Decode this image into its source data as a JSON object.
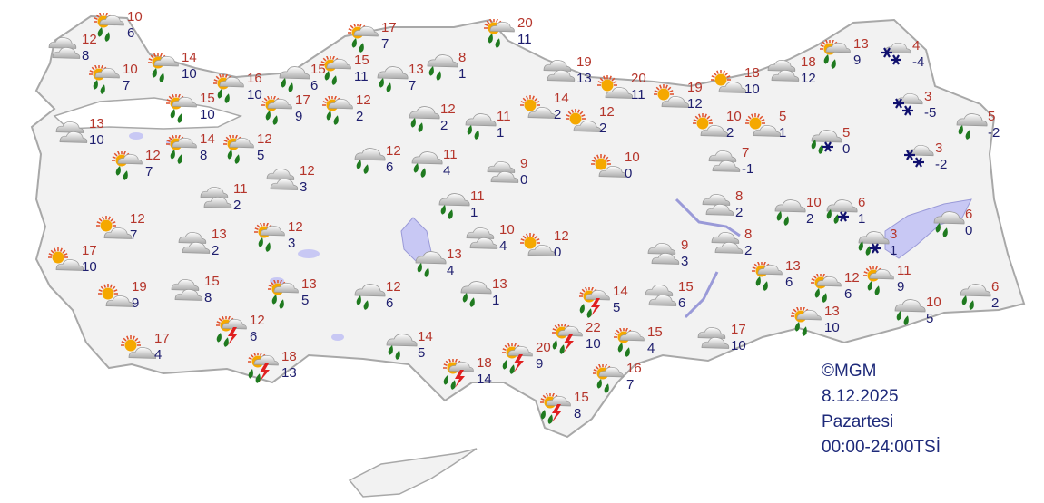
{
  "credit": "©MGM",
  "date": "8.12.2025",
  "day": "Pazartesi",
  "period": "00:00-24:00TSİ",
  "colors": {
    "land": "#f2f2f2",
    "border": "#a8a8a8",
    "lake": "#c8c8f4",
    "high": "#b5352b",
    "low": "#1e1e6e",
    "rain": "#1f7a1f",
    "snow": "#10106e",
    "bolt": "#e02020",
    "sun": "#f5a800"
  },
  "stations": [
    {
      "icon": "sun-rain",
      "hi": "10",
      "lo": "6"
    },
    {
      "icon": "cloudy",
      "hi": "12",
      "lo": "8"
    },
    {
      "icon": "sun-rain",
      "hi": "10",
      "lo": "7"
    },
    {
      "icon": "sun-rain",
      "hi": "14",
      "lo": "10"
    },
    {
      "icon": "sun-rain",
      "hi": "16",
      "lo": "10"
    },
    {
      "icon": "sun-rain",
      "hi": "15",
      "lo": "10"
    },
    {
      "icon": "rain",
      "hi": "15",
      "lo": "6"
    },
    {
      "icon": "sun-rain",
      "hi": "15",
      "lo": "11"
    },
    {
      "icon": "sun-rain",
      "hi": "17",
      "lo": "7"
    },
    {
      "icon": "sun-rain",
      "hi": "17",
      "lo": "9"
    },
    {
      "icon": "sun-rain",
      "hi": "12",
      "lo": "2"
    },
    {
      "icon": "rain",
      "hi": "13",
      "lo": "7"
    },
    {
      "icon": "rain",
      "hi": "8",
      "lo": "1"
    },
    {
      "icon": "sun-rain",
      "hi": "20",
      "lo": "11"
    },
    {
      "icon": "cloudy",
      "hi": "13",
      "lo": "10"
    },
    {
      "icon": "sun-rain",
      "hi": "14",
      "lo": "8"
    },
    {
      "icon": "sun-rain",
      "hi": "12",
      "lo": "5"
    },
    {
      "icon": "sun-rain",
      "hi": "12",
      "lo": "7"
    },
    {
      "icon": "cloudy",
      "hi": "11",
      "lo": "2"
    },
    {
      "icon": "cloudy",
      "hi": "12",
      "lo": "3"
    },
    {
      "icon": "rain",
      "hi": "12",
      "lo": "6"
    },
    {
      "icon": "rain",
      "hi": "12",
      "lo": "2"
    },
    {
      "icon": "rain",
      "hi": "11",
      "lo": "1"
    },
    {
      "icon": "sun-cloud",
      "hi": "14",
      "lo": "2"
    },
    {
      "icon": "sun-cloud",
      "hi": "12",
      "lo": "2"
    },
    {
      "icon": "cloudy",
      "hi": "19",
      "lo": "13"
    },
    {
      "icon": "sun-cloud",
      "hi": "20",
      "lo": "11"
    },
    {
      "icon": "sun-cloud",
      "hi": "19",
      "lo": "12"
    },
    {
      "icon": "sun-cloud",
      "hi": "18",
      "lo": "10"
    },
    {
      "icon": "cloudy",
      "hi": "18",
      "lo": "12"
    },
    {
      "icon": "sun-rain",
      "hi": "13",
      "lo": "9"
    },
    {
      "icon": "snow",
      "hi": "4",
      "lo": "-4"
    },
    {
      "icon": "snow",
      "hi": "3",
      "lo": "-5"
    },
    {
      "icon": "rain",
      "hi": "5",
      "lo": "-2"
    },
    {
      "icon": "sun-cloud",
      "hi": "10",
      "lo": "2"
    },
    {
      "icon": "sun-cloud",
      "hi": "5",
      "lo": "1"
    },
    {
      "icon": "sleet",
      "hi": "5",
      "lo": "0"
    },
    {
      "icon": "snow",
      "hi": "3",
      "lo": "-2"
    },
    {
      "icon": "cloudy",
      "hi": "7",
      "lo": "-1"
    },
    {
      "icon": "rain",
      "hi": "11",
      "lo": "4"
    },
    {
      "icon": "cloudy",
      "hi": "9",
      "lo": "0"
    },
    {
      "icon": "sun-cloud",
      "hi": "10",
      "lo": "0"
    },
    {
      "icon": "rain",
      "hi": "11",
      "lo": "1"
    },
    {
      "icon": "cloudy",
      "hi": "8",
      "lo": "2"
    },
    {
      "icon": "rain",
      "hi": "10",
      "lo": "2"
    },
    {
      "icon": "sleet",
      "hi": "6",
      "lo": "1"
    },
    {
      "icon": "rain",
      "hi": "6",
      "lo": "0"
    },
    {
      "icon": "sleet",
      "hi": "3",
      "lo": "1"
    },
    {
      "icon": "cloudy",
      "hi": "8",
      "lo": "2"
    },
    {
      "icon": "cloudy",
      "hi": "9",
      "lo": "3"
    },
    {
      "icon": "sun-cloud",
      "hi": "12",
      "lo": "7"
    },
    {
      "icon": "cloudy",
      "hi": "13",
      "lo": "2"
    },
    {
      "icon": "sun-rain",
      "hi": "12",
      "lo": "3"
    },
    {
      "icon": "cloudy",
      "hi": "10",
      "lo": "4"
    },
    {
      "icon": "sun-cloud",
      "hi": "12",
      "lo": "0"
    },
    {
      "icon": "sun-cloud",
      "hi": "17",
      "lo": "10"
    },
    {
      "icon": "rain",
      "hi": "13",
      "lo": "4"
    },
    {
      "icon": "sun-rain",
      "hi": "13",
      "lo": "6"
    },
    {
      "icon": "sun-rain",
      "hi": "12",
      "lo": "6"
    },
    {
      "icon": "sun-rain",
      "hi": "11",
      "lo": "9"
    },
    {
      "icon": "rain",
      "hi": "6",
      "lo": "2"
    },
    {
      "icon": "sun-cloud",
      "hi": "19",
      "lo": "9"
    },
    {
      "icon": "cloudy",
      "hi": "15",
      "lo": "8"
    },
    {
      "icon": "sun-rain",
      "hi": "13",
      "lo": "5"
    },
    {
      "icon": "rain",
      "hi": "12",
      "lo": "6"
    },
    {
      "icon": "rain",
      "hi": "13",
      "lo": "1"
    },
    {
      "icon": "storm",
      "hi": "14",
      "lo": "5"
    },
    {
      "icon": "cloudy",
      "hi": "15",
      "lo": "6"
    },
    {
      "icon": "rain",
      "hi": "10",
      "lo": "5"
    },
    {
      "icon": "sun-rain",
      "hi": "13",
      "lo": "10"
    },
    {
      "icon": "storm",
      "hi": "12",
      "lo": "6"
    },
    {
      "icon": "storm",
      "hi": "22",
      "lo": "10"
    },
    {
      "icon": "sun-rain",
      "hi": "15",
      "lo": "4"
    },
    {
      "icon": "cloudy",
      "hi": "17",
      "lo": "10"
    },
    {
      "icon": "sun-cloud",
      "hi": "17",
      "lo": "4"
    },
    {
      "icon": "rain",
      "hi": "14",
      "lo": "5"
    },
    {
      "icon": "storm",
      "hi": "18",
      "lo": "13"
    },
    {
      "icon": "storm",
      "hi": "18",
      "lo": "14"
    },
    {
      "icon": "storm",
      "hi": "20",
      "lo": "9"
    },
    {
      "icon": "sun-rain",
      "hi": "16",
      "lo": "7"
    },
    {
      "icon": "storm",
      "hi": "15",
      "lo": "8"
    }
  ]
}
